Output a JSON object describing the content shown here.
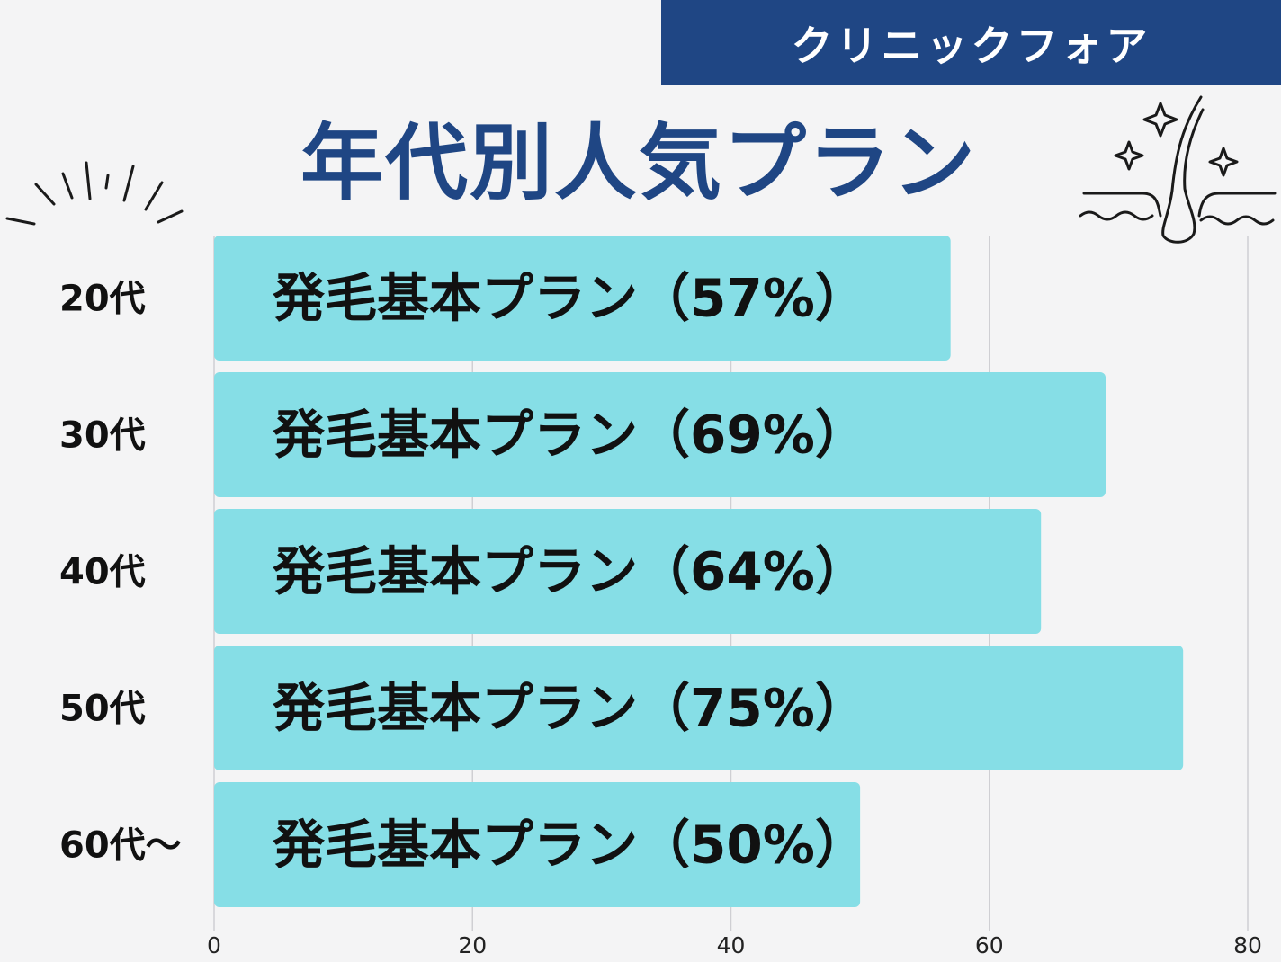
{
  "brand": {
    "name": "クリニックフォア"
  },
  "title": "年代別人気プラン",
  "icons": {
    "burst": "sparkle-burst-icon",
    "hair": "hair-follicle-icon"
  },
  "colors": {
    "brand": "#1f4684",
    "bar": "#86dee6",
    "grid": "#cfcfd3",
    "background": "#f4f4f5"
  },
  "chart_data": {
    "type": "bar",
    "orientation": "horizontal",
    "categories": [
      "20代",
      "30代",
      "40代",
      "50代",
      "60代〜"
    ],
    "values": [
      57,
      69,
      64,
      75,
      50
    ],
    "bar_labels": [
      "発毛基本プラン（57%）",
      "発毛基本プラン（69%）",
      "発毛基本プラン（64%）",
      "発毛基本プラン（75%）",
      "発毛基本プラン（50%）"
    ],
    "xlim": [
      0,
      80
    ],
    "xticks": [
      0,
      20,
      40,
      60,
      80
    ],
    "grid": true,
    "legend": "none"
  }
}
